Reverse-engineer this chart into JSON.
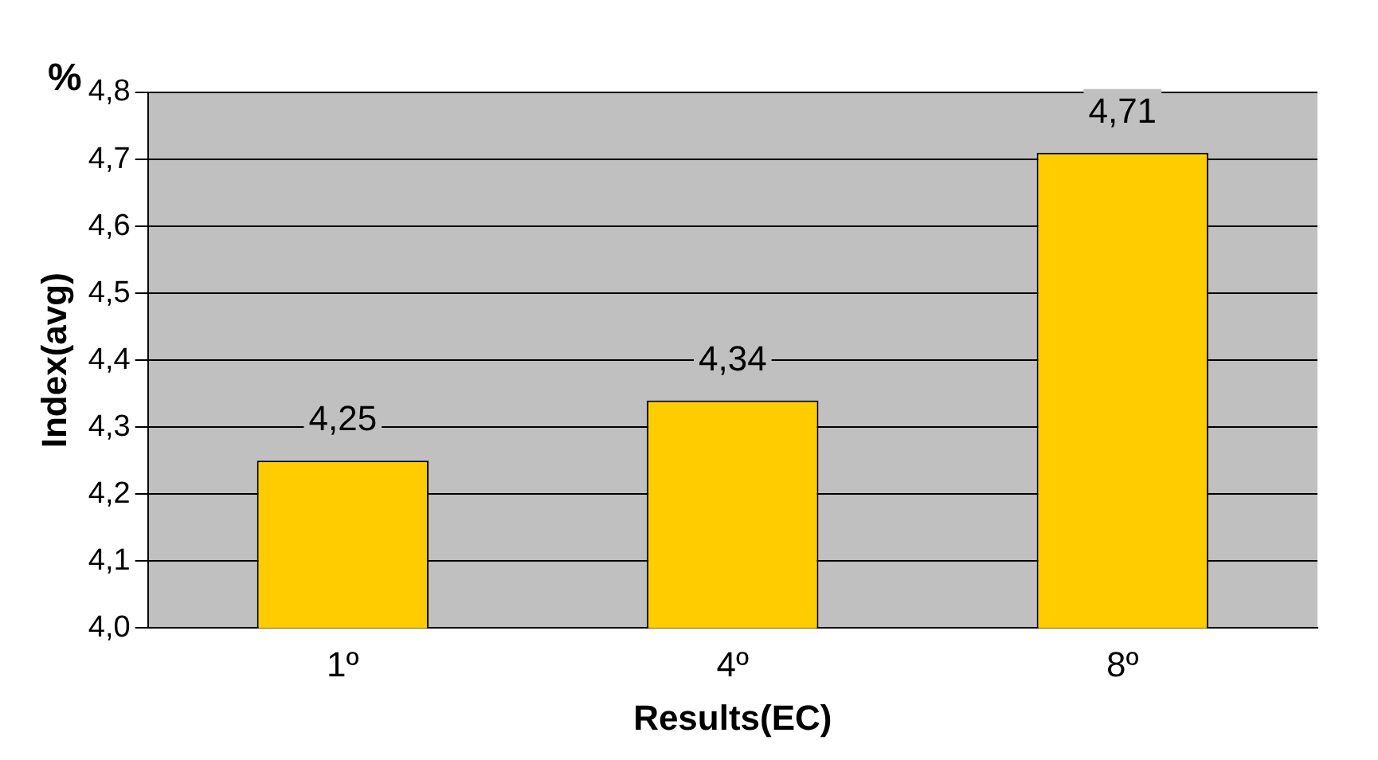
{
  "chart_data": {
    "type": "bar",
    "xlabel": "Results(EC)",
    "ylabel": "Index(avg)",
    "annotations": [
      "%"
    ],
    "categories": [
      "1º",
      "4º",
      "8º"
    ],
    "values": [
      4.25,
      4.34,
      4.71
    ],
    "color": "#ffcc00",
    "value_labels": [
      "4,25",
      "4,34",
      "4,71"
    ],
    "ylim": [
      4.0,
      4.8
    ],
    "yticks": [
      {
        "value": 4.0,
        "label": "4,0"
      },
      {
        "value": 4.1,
        "label": "4,1"
      },
      {
        "value": 4.2,
        "label": "4,2"
      },
      {
        "value": 4.3,
        "label": "4,3"
      },
      {
        "value": 4.4,
        "label": "4,4"
      },
      {
        "value": 4.5,
        "label": "4,5"
      },
      {
        "value": 4.6,
        "label": "4,6"
      },
      {
        "value": 4.7,
        "label": "4,7"
      },
      {
        "value": 4.8,
        "label": "4,8"
      }
    ],
    "grid": "y",
    "legend": false
  }
}
